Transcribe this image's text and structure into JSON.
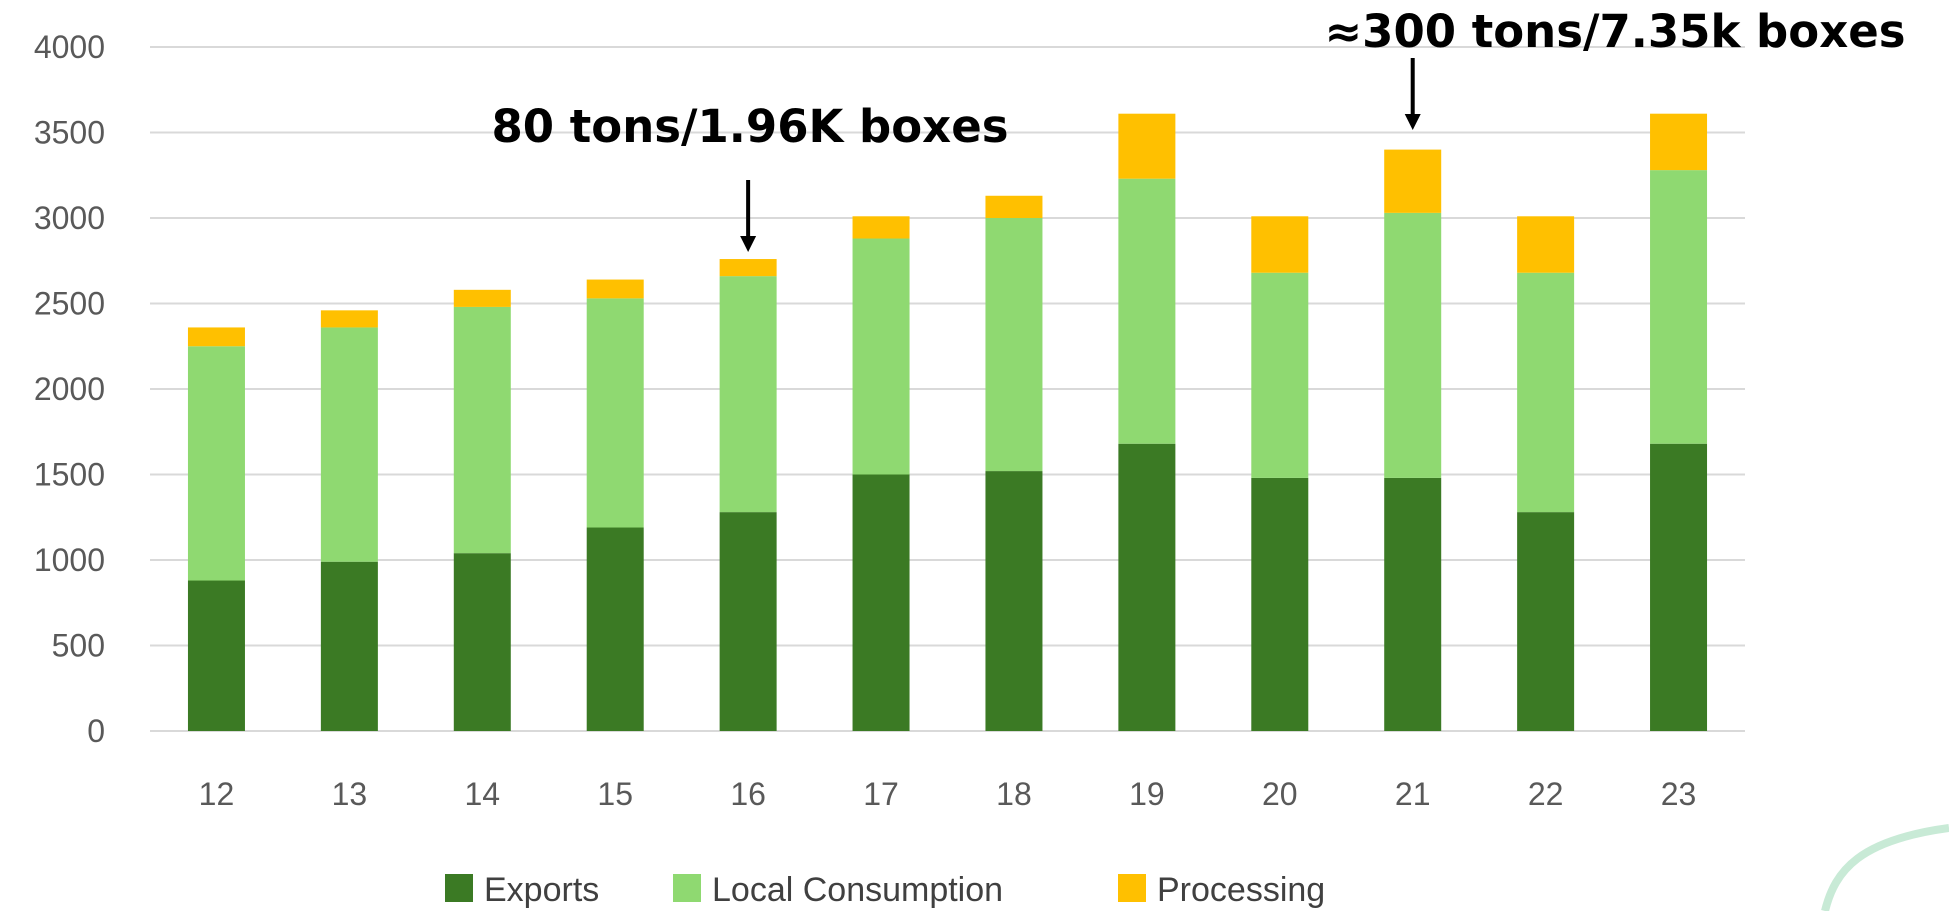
{
  "chart_data": {
    "type": "bar",
    "stacked": true,
    "categories": [
      "12",
      "13",
      "14",
      "15",
      "16",
      "17",
      "18",
      "19",
      "20",
      "21",
      "22",
      "23"
    ],
    "series": [
      {
        "name": "Exports",
        "color": "#3b7a24",
        "values": [
          880,
          990,
          1040,
          1190,
          1280,
          1500,
          1520,
          1680,
          1480,
          1480,
          1280,
          1680
        ]
      },
      {
        "name": "Local Consumption",
        "color": "#8fd971",
        "values": [
          1370,
          1370,
          1440,
          1340,
          1380,
          1380,
          1480,
          1550,
          1200,
          1550,
          1400,
          1600
        ]
      },
      {
        "name": "Processing",
        "color": "#ffc000",
        "values": [
          110,
          100,
          100,
          110,
          100,
          130,
          130,
          380,
          330,
          370,
          330,
          330
        ]
      }
    ],
    "ylim": [
      0,
      4000
    ],
    "yticks": [
      0,
      500,
      1000,
      1500,
      2000,
      2500,
      3000,
      3500,
      4000
    ],
    "grid": true,
    "legend_position": "bottom",
    "annotations": [
      {
        "text": "80 tons/1.96K boxes",
        "category": "16"
      },
      {
        "text": "≈300 tons/7.35k boxes",
        "category": "21"
      }
    ]
  }
}
